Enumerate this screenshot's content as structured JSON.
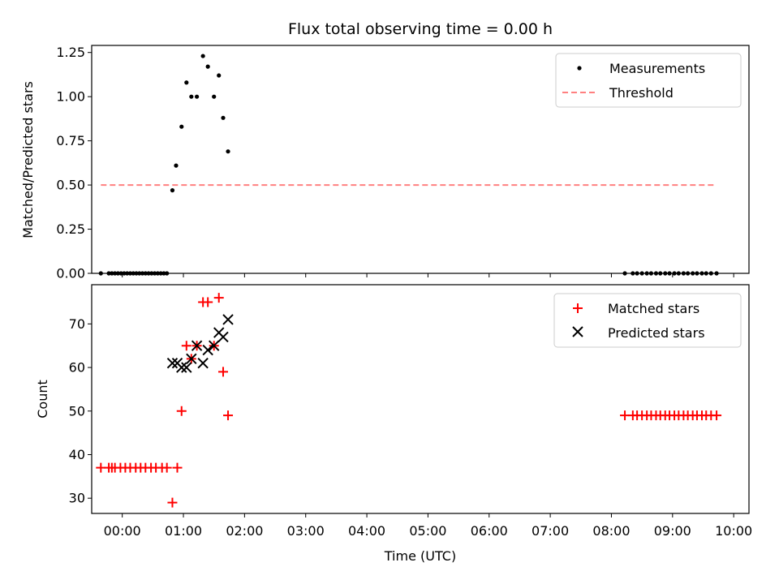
{
  "title": "Flux total observing time = 0.00 h",
  "chart_data": [
    {
      "type": "scatter",
      "ylabel": "Matched/Predicted stars",
      "xlim": [
        -0.5,
        10.25
      ],
      "ylim": [
        0,
        1.29
      ],
      "yticks": [
        "0.00",
        "0.25",
        "0.50",
        "0.75",
        "1.00",
        "1.25"
      ],
      "ytick_values": [
        0,
        0.25,
        0.5,
        0.75,
        1.0,
        1.25
      ],
      "legend_position": "top-right",
      "series": [
        {
          "name": "Measurements",
          "marker": "dot",
          "color": "#000000",
          "x": [
            -0.35,
            -0.22,
            -0.17,
            -0.12,
            -0.07,
            -0.02,
            0.03,
            0.08,
            0.13,
            0.18,
            0.23,
            0.28,
            0.33,
            0.38,
            0.43,
            0.48,
            0.53,
            0.58,
            0.63,
            0.68,
            0.73,
            0.82,
            0.88,
            0.97,
            1.05,
            1.13,
            1.22,
            1.32,
            1.4,
            1.5,
            1.58,
            1.65,
            1.73,
            8.22,
            8.35,
            8.42,
            8.5,
            8.58,
            8.65,
            8.73,
            8.8,
            8.88,
            8.95,
            9.03,
            9.1,
            9.18,
            9.25,
            9.33,
            9.4,
            9.48,
            9.55,
            9.63,
            9.72
          ],
          "y": [
            0,
            0,
            0,
            0,
            0,
            0,
            0,
            0,
            0,
            0,
            0,
            0,
            0,
            0,
            0,
            0,
            0,
            0,
            0,
            0,
            0,
            0.47,
            0.61,
            0.83,
            1.08,
            1.0,
            1.0,
            1.23,
            1.17,
            1.0,
            1.12,
            0.88,
            0.69,
            0,
            0,
            0,
            0,
            0,
            0,
            0,
            0,
            0,
            0,
            0,
            0,
            0,
            0,
            0,
            0,
            0,
            0,
            0,
            0
          ]
        },
        {
          "name": "Threshold",
          "marker": "dashed-line",
          "color": "#ff8080",
          "x": [
            -0.35,
            9.72
          ],
          "y": [
            0.5,
            0.5
          ]
        }
      ]
    },
    {
      "type": "scatter",
      "xlabel": "Time (UTC)",
      "ylabel": "Count",
      "xlim": [
        -0.5,
        10.25
      ],
      "ylim": [
        26.5,
        79
      ],
      "xticks": [
        "00:00",
        "01:00",
        "02:00",
        "03:00",
        "04:00",
        "05:00",
        "06:00",
        "07:00",
        "08:00",
        "09:00",
        "10:00"
      ],
      "xtick_values": [
        0,
        1,
        2,
        3,
        4,
        5,
        6,
        7,
        8,
        9,
        10
      ],
      "yticks": [
        "30",
        "40",
        "50",
        "60",
        "70"
      ],
      "ytick_values": [
        30,
        40,
        50,
        60,
        70
      ],
      "legend_position": "top-right",
      "series": [
        {
          "name": "Matched stars",
          "marker": "plus",
          "color": "#ff0000",
          "x": [
            -0.35,
            -0.22,
            -0.17,
            -0.12,
            -0.03,
            0.05,
            0.13,
            0.22,
            0.3,
            0.38,
            0.47,
            0.55,
            0.65,
            0.73,
            0.82,
            0.9,
            0.97,
            1.05,
            1.13,
            1.22,
            1.32,
            1.4,
            1.5,
            1.58,
            1.65,
            1.73,
            8.22,
            8.35,
            8.42,
            8.5,
            8.58,
            8.65,
            8.73,
            8.8,
            8.88,
            8.95,
            9.03,
            9.1,
            9.18,
            9.25,
            9.33,
            9.4,
            9.48,
            9.55,
            9.63,
            9.72
          ],
          "y": [
            37,
            37,
            37,
            37,
            37,
            37,
            37,
            37,
            37,
            37,
            37,
            37,
            37,
            37,
            29,
            37,
            50,
            65,
            62,
            65,
            75,
            75,
            65,
            76,
            59,
            49,
            49,
            49,
            49,
            49,
            49,
            49,
            49,
            49,
            49,
            49,
            49,
            49,
            49,
            49,
            49,
            49,
            49,
            49,
            49,
            49
          ]
        },
        {
          "name": "Predicted stars",
          "marker": "x",
          "color": "#000000",
          "x": [
            0.82,
            0.9,
            0.97,
            1.05,
            1.13,
            1.22,
            1.32,
            1.4,
            1.5,
            1.58,
            1.65,
            1.73
          ],
          "y": [
            61,
            61,
            60,
            60,
            62,
            65,
            61,
            64,
            65,
            68,
            67,
            71
          ]
        }
      ]
    }
  ]
}
